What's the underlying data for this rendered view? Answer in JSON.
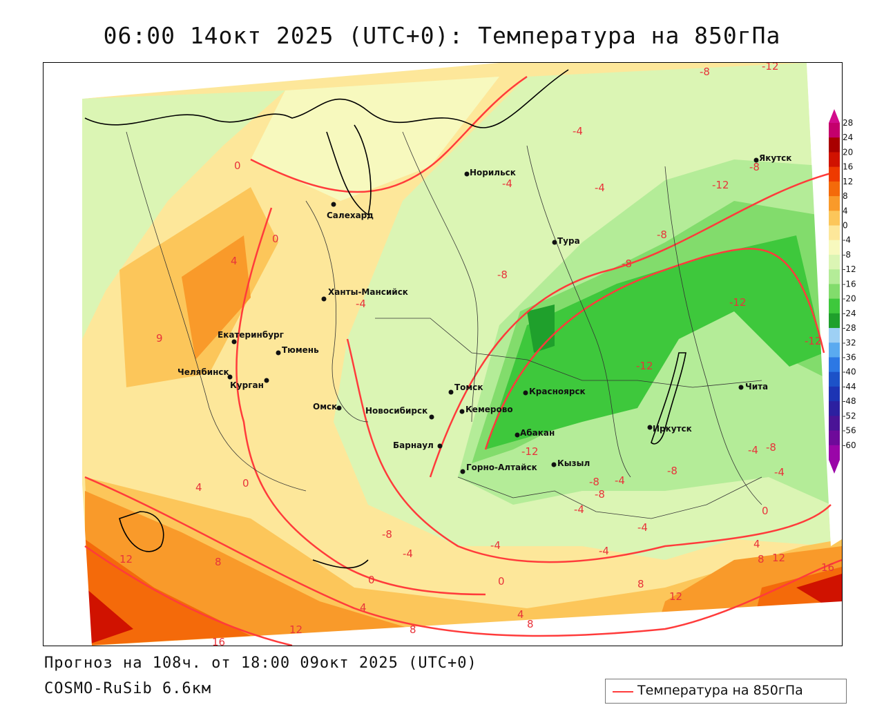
{
  "title": "06:00 14окт 2025 (UTC+0): Температура на 850гПа",
  "footer": {
    "forecast": "Прогноз на 108ч. от 18:00 09окт 2025 (UTC+0)",
    "model": "COSMO-RuSib 6.6км"
  },
  "legend": {
    "label": "Температура на 850гПа",
    "line_color": "#ff3b3b"
  },
  "colorbar": {
    "levels": [
      "28",
      "24",
      "20",
      "16",
      "12",
      "8",
      "4",
      "0",
      "-4",
      "-8",
      "-12",
      "-16",
      "-20",
      "-24",
      "-28",
      "-32",
      "-36",
      "-40",
      "-44",
      "-48",
      "-52",
      "-56",
      "-60"
    ],
    "colors": [
      "#c4006c",
      "#a80000",
      "#d01200",
      "#ee3a00",
      "#f46a0a",
      "#f99a2a",
      "#fcc65a",
      "#fde79a",
      "#f7f9be",
      "#dbf5b4",
      "#b4ec98",
      "#82dc6c",
      "#3ec83c",
      "#1fa02c",
      "#9ed0f4",
      "#5aaaf0",
      "#2c78e4",
      "#1c52c8",
      "#1c34b4",
      "#2c20a0",
      "#4a1496",
      "#6e0a9a",
      "#9a06a8"
    ]
  },
  "cities": [
    {
      "name": "Норильск"
    },
    {
      "name": "Якутск"
    },
    {
      "name": "Салехард"
    },
    {
      "name": "Тура"
    },
    {
      "name": "Ханты-Мансийск"
    },
    {
      "name": "Екатеринбург"
    },
    {
      "name": "Тюмень"
    },
    {
      "name": "Челябинск"
    },
    {
      "name": "Курган"
    },
    {
      "name": "Омск"
    },
    {
      "name": "Новосибирск"
    },
    {
      "name": "Томск"
    },
    {
      "name": "Кемерово"
    },
    {
      "name": "Красноярск"
    },
    {
      "name": "Барнаул"
    },
    {
      "name": "Абакан"
    },
    {
      "name": "Горно-Алтайск"
    },
    {
      "name": "Кызыл"
    },
    {
      "name": "Иркутск"
    },
    {
      "name": "Чита"
    }
  ],
  "contour_labels": [
    "-12",
    "-8",
    "-8",
    "-4",
    "-4",
    "-4",
    "0",
    "-8",
    "-12",
    "-8",
    "0",
    "4",
    "-8",
    "-4",
    "-12",
    "-12",
    "9",
    "-12",
    "-4",
    "-8",
    "-12",
    "-8",
    "4",
    "0",
    "-8",
    "-8",
    "-4",
    "-4",
    "-4",
    "-4",
    "-8",
    "-4",
    "0",
    "12",
    "8",
    "-4",
    "-4",
    "0",
    "4",
    "8",
    "12",
    "16",
    "8",
    "12",
    "4",
    "8",
    "12",
    "8",
    "16",
    "0",
    "4"
  ]
}
